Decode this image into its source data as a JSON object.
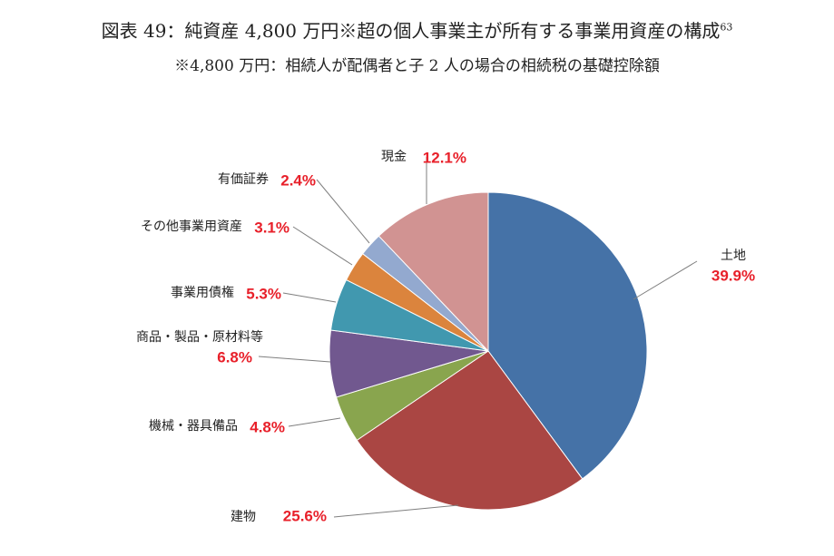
{
  "title": {
    "main": "図表 49：純資産 4,800 万円※超の個人事業主が所有する事業用資産の構成",
    "footnote_ref": "63"
  },
  "subtitle": "※4,800 万円：相続人が配偶者と子 2 人の場合の相続税の基礎控除額",
  "chart_data": {
    "type": "pie",
    "title": "図表 49：純資産 4,800 万円※超の個人事業主が所有する事業用資産の構成",
    "subtitle": "※4,800 万円：相続人が配偶者と子 2 人の場合の相続税の基礎控除額",
    "start": "12 o'clock, clockwise",
    "slices": [
      {
        "label": "土地",
        "value": 39.9,
        "display": "39.9%",
        "color": "#4572a7"
      },
      {
        "label": "建物",
        "value": 25.6,
        "display": "25.6%",
        "color": "#aa4643"
      },
      {
        "label": "機械・器具備品",
        "value": 4.8,
        "display": "4.8%",
        "color": "#89a54e"
      },
      {
        "label": "商品・製品・原材料等",
        "value": 6.8,
        "display": "6.8%",
        "color": "#71588f"
      },
      {
        "label": "事業用債権",
        "value": 5.3,
        "display": "5.3%",
        "color": "#4198af"
      },
      {
        "label": "その他事業用資産",
        "value": 3.1,
        "display": "3.1%",
        "color": "#db843d"
      },
      {
        "label": "有価証券",
        "value": 2.4,
        "display": "2.4%",
        "color": "#93a9cf"
      },
      {
        "label": "現金",
        "value": 12.1,
        "display": "12.1%",
        "color": "#d19392"
      }
    ]
  }
}
